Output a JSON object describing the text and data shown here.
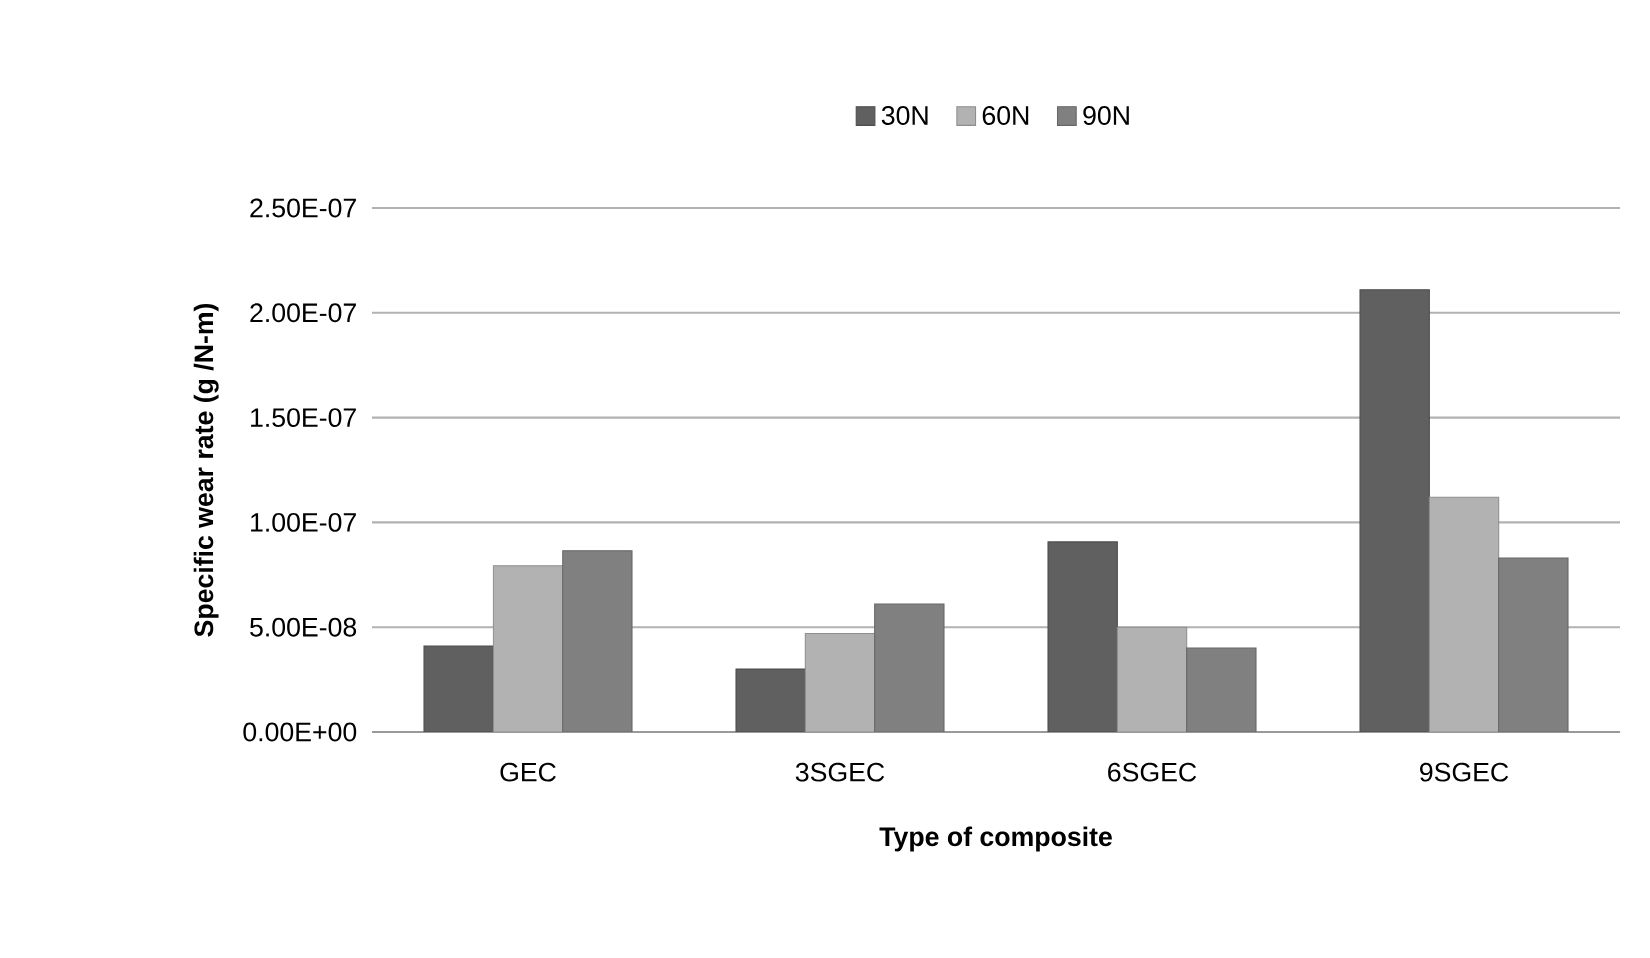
{
  "chart_data": {
    "type": "bar",
    "xlabel": "Type of composite",
    "ylabel": "Specific wear rate (g /N-m)",
    "categories": [
      "GEC",
      "3SGEC",
      "6SGEC",
      "9SGEC"
    ],
    "series": [
      {
        "name": "30N",
        "color": "#606060",
        "values": [
          4.1e-08,
          3e-08,
          9.07e-08,
          2.11e-07
        ]
      },
      {
        "name": "60N",
        "color": "#b2b2b2",
        "values": [
          7.93e-08,
          4.7e-08,
          5e-08,
          1.12e-07
        ]
      },
      {
        "name": "90N",
        "color": "#808080",
        "values": [
          8.65e-08,
          6.1e-08,
          4e-08,
          8.3e-08
        ]
      }
    ],
    "ylim": [
      0,
      2.5e-07
    ],
    "yticks": [
      {
        "value": 0,
        "label": "0.00E+00"
      },
      {
        "value": 5e-08,
        "label": "5.00E-08"
      },
      {
        "value": 1e-07,
        "label": "1.00E-07"
      },
      {
        "value": 1.5e-07,
        "label": "1.50E-07"
      },
      {
        "value": 2e-07,
        "label": "2.00E-07"
      },
      {
        "value": 2.5e-07,
        "label": "2.50E-07"
      }
    ],
    "grid": "y",
    "legend": "top"
  }
}
